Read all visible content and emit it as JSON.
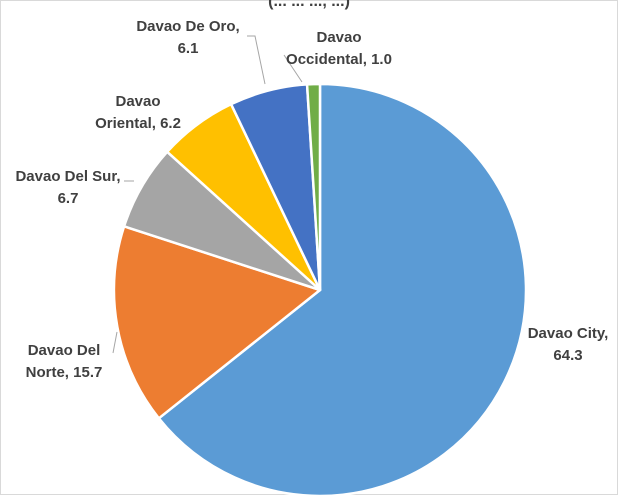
{
  "chart_data": {
    "type": "pie",
    "title": "(... ... ..., ...)",
    "categories": [
      "Davao City",
      "Davao Del Norte",
      "Davao Del Sur",
      "Davao Oriental",
      "Davao De Oro",
      "Davao Occidental"
    ],
    "values": [
      64.3,
      15.7,
      6.7,
      6.2,
      6.1,
      1.0
    ],
    "labels": [
      {
        "lines": [
          "Davao City,",
          "64.3"
        ]
      },
      {
        "lines": [
          "Davao Del",
          "Norte, 15.7"
        ]
      },
      {
        "lines": [
          "Davao Del Sur,",
          "6.7"
        ]
      },
      {
        "lines": [
          "Davao",
          "Oriental, 6.2"
        ]
      },
      {
        "lines": [
          "Davao De Oro,",
          "6.1"
        ]
      },
      {
        "lines": [
          "Davao",
          "Occidental, 1.0"
        ]
      }
    ],
    "colors": [
      "#5B9BD5",
      "#ED7D31",
      "#A5A5A5",
      "#FFC000",
      "#4472C4",
      "#70AD47"
    ],
    "legend": "none",
    "start_angle_deg": 0,
    "direction": "clockwise"
  }
}
